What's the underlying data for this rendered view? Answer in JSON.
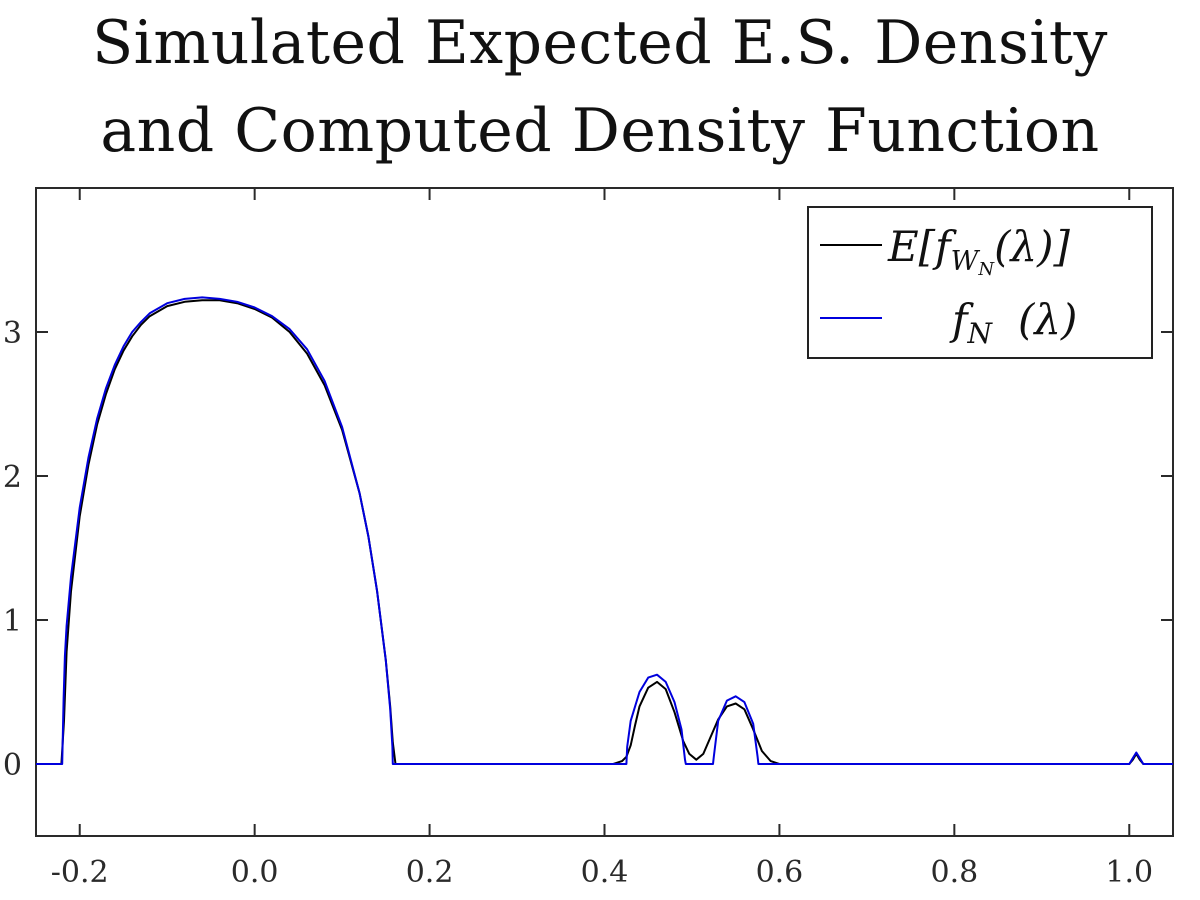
{
  "chart_data": {
    "type": "line",
    "title_lines": [
      "Simulated Expected E.S. Density",
      "and Computed Density Function"
    ],
    "xlabel": "",
    "ylabel": "",
    "xlim": [
      -0.25,
      1.05
    ],
    "ylim": [
      -0.5,
      4.0
    ],
    "x_ticks": [
      -0.2,
      0.0,
      0.2,
      0.4,
      0.6,
      0.8,
      1.0
    ],
    "x_tick_labels": [
      "-0.2",
      "0.0",
      "0.2",
      "0.4",
      "0.6",
      "0.8",
      "1.0"
    ],
    "y_ticks": [
      0,
      1,
      2,
      3
    ],
    "y_tick_labels": [
      "0",
      "1",
      "2",
      "3"
    ],
    "grid": false,
    "legend_position": "top-right",
    "series": [
      {
        "name": "E[f_{W_N}(λ)]",
        "legend_label": {
          "main": "E[f",
          "sub": "W",
          "subsub": "N",
          "tail": "(λ)]"
        },
        "color": "#000000",
        "points": [
          [
            -0.25,
            0
          ],
          [
            -0.221,
            0
          ],
          [
            -0.218,
            0.3
          ],
          [
            -0.215,
            0.78
          ],
          [
            -0.21,
            1.2
          ],
          [
            -0.2,
            1.72
          ],
          [
            -0.19,
            2.08
          ],
          [
            -0.18,
            2.36
          ],
          [
            -0.17,
            2.57
          ],
          [
            -0.16,
            2.74
          ],
          [
            -0.15,
            2.87
          ],
          [
            -0.14,
            2.97
          ],
          [
            -0.13,
            3.05
          ],
          [
            -0.12,
            3.11
          ],
          [
            -0.1,
            3.18
          ],
          [
            -0.08,
            3.21
          ],
          [
            -0.06,
            3.22
          ],
          [
            -0.04,
            3.22
          ],
          [
            -0.03,
            3.21
          ],
          [
            -0.02,
            3.2
          ],
          [
            0.0,
            3.16
          ],
          [
            0.02,
            3.1
          ],
          [
            0.04,
            3.0
          ],
          [
            0.06,
            2.85
          ],
          [
            0.08,
            2.63
          ],
          [
            0.1,
            2.32
          ],
          [
            0.12,
            1.88
          ],
          [
            0.13,
            1.58
          ],
          [
            0.14,
            1.2
          ],
          [
            0.15,
            0.72
          ],
          [
            0.155,
            0.4
          ],
          [
            0.158,
            0.15
          ],
          [
            0.161,
            0
          ],
          [
            0.41,
            0
          ],
          [
            0.42,
            0.02
          ],
          [
            0.425,
            0.05
          ],
          [
            0.43,
            0.13
          ],
          [
            0.435,
            0.27
          ],
          [
            0.44,
            0.4
          ],
          [
            0.45,
            0.53
          ],
          [
            0.46,
            0.57
          ],
          [
            0.47,
            0.52
          ],
          [
            0.48,
            0.36
          ],
          [
            0.49,
            0.16
          ],
          [
            0.497,
            0.07
          ],
          [
            0.505,
            0.03
          ],
          [
            0.513,
            0.07
          ],
          [
            0.52,
            0.17
          ],
          [
            0.53,
            0.31
          ],
          [
            0.54,
            0.4
          ],
          [
            0.55,
            0.42
          ],
          [
            0.56,
            0.38
          ],
          [
            0.57,
            0.24
          ],
          [
            0.58,
            0.09
          ],
          [
            0.59,
            0.02
          ],
          [
            0.6,
            0
          ],
          [
            1.0,
            0
          ],
          [
            1.004,
            0.03
          ],
          [
            1.008,
            0.07
          ],
          [
            1.012,
            0.03
          ],
          [
            1.016,
            0
          ],
          [
            1.05,
            0
          ]
        ]
      },
      {
        "name": "f_N (λ)",
        "legend_label": {
          "main": "f",
          "sub": "N",
          "tail": "(λ)"
        },
        "color": "#0000dd",
        "points": [
          [
            -0.25,
            0
          ],
          [
            -0.22,
            0
          ],
          [
            -0.2185,
            0.45
          ],
          [
            -0.217,
            0.75
          ],
          [
            -0.215,
            0.96
          ],
          [
            -0.21,
            1.3
          ],
          [
            -0.2,
            1.78
          ],
          [
            -0.19,
            2.13
          ],
          [
            -0.18,
            2.4
          ],
          [
            -0.17,
            2.61
          ],
          [
            -0.16,
            2.77
          ],
          [
            -0.15,
            2.9
          ],
          [
            -0.14,
            3.0
          ],
          [
            -0.13,
            3.07
          ],
          [
            -0.12,
            3.13
          ],
          [
            -0.1,
            3.2
          ],
          [
            -0.08,
            3.23
          ],
          [
            -0.06,
            3.24
          ],
          [
            -0.04,
            3.23
          ],
          [
            -0.02,
            3.21
          ],
          [
            0.0,
            3.17
          ],
          [
            0.02,
            3.11
          ],
          [
            0.04,
            3.02
          ],
          [
            0.06,
            2.88
          ],
          [
            0.08,
            2.66
          ],
          [
            0.1,
            2.34
          ],
          [
            0.12,
            1.88
          ],
          [
            0.13,
            1.58
          ],
          [
            0.14,
            1.2
          ],
          [
            0.15,
            0.72
          ],
          [
            0.155,
            0.38
          ],
          [
            0.1575,
            0.12
          ],
          [
            0.158,
            0
          ],
          [
            0.425,
            0
          ],
          [
            0.426,
            0.12
          ],
          [
            0.43,
            0.3
          ],
          [
            0.44,
            0.5
          ],
          [
            0.45,
            0.6
          ],
          [
            0.46,
            0.62
          ],
          [
            0.47,
            0.57
          ],
          [
            0.48,
            0.43
          ],
          [
            0.488,
            0.24
          ],
          [
            0.492,
            0.03
          ],
          [
            0.493,
            0
          ],
          [
            0.524,
            0
          ],
          [
            0.525,
            0.05
          ],
          [
            0.53,
            0.3
          ],
          [
            0.54,
            0.44
          ],
          [
            0.55,
            0.47
          ],
          [
            0.56,
            0.43
          ],
          [
            0.57,
            0.28
          ],
          [
            0.575,
            0.05
          ],
          [
            0.576,
            0
          ],
          [
            1.0,
            0
          ],
          [
            1.004,
            0.04
          ],
          [
            1.008,
            0.08
          ],
          [
            1.012,
            0.04
          ],
          [
            1.016,
            0
          ],
          [
            1.05,
            0
          ]
        ]
      }
    ]
  }
}
